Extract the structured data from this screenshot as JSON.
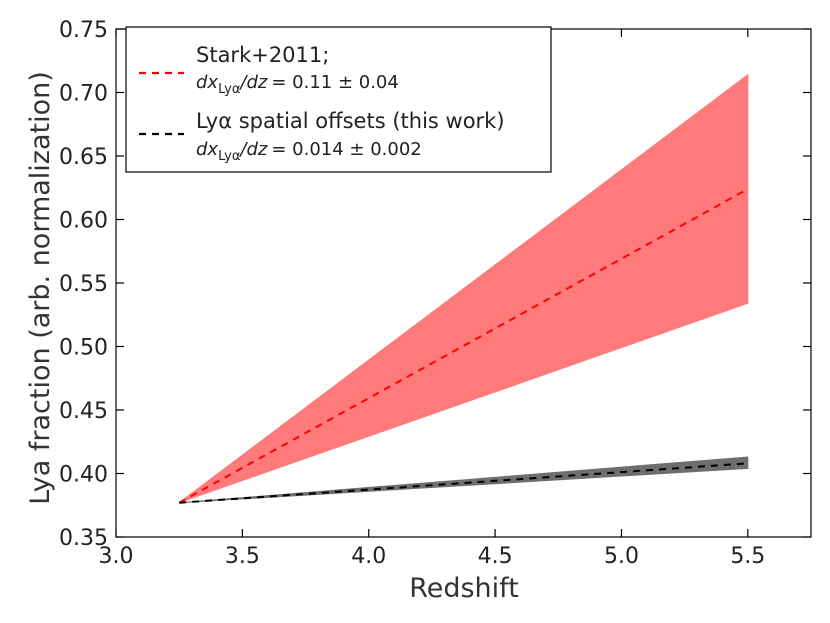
{
  "chart_data": {
    "type": "line",
    "xlabel": "Redshift",
    "ylabel": "Lya fraction (arb. normalization)",
    "xlim": [
      3.0,
      5.75
    ],
    "ylim": [
      0.35,
      0.75
    ],
    "xticks": [
      "3.0",
      "3.5",
      "4.0",
      "4.5",
      "5.0",
      "5.5"
    ],
    "yticks": [
      "0.35",
      "0.40",
      "0.45",
      "0.50",
      "0.55",
      "0.60",
      "0.65",
      "0.70",
      "0.75"
    ],
    "legend_position": "upper-left",
    "series": [
      {
        "name": "Stark+2011;",
        "slope_label": "dx_Lyα/dz = 0.11 ± 0.04",
        "slope_prefix_1": "dx",
        "slope_sub": "Lyα",
        "slope_prefix_2": "/dz",
        "slope_value": "= 0.11 ± 0.04",
        "line_color": "#ff0000",
        "band_color": "#ff7a7a",
        "x": [
          3.25,
          5.5
        ],
        "y": [
          0.377,
          0.624
        ],
        "y_lower": [
          0.377,
          0.534
        ],
        "y_upper": [
          0.377,
          0.714
        ]
      },
      {
        "name": "Lyα spatial offsets (this work)",
        "slope_label": "dx_Lyα/dz = 0.014 ± 0.002",
        "slope_prefix_1": "dx",
        "slope_sub": "Lyα",
        "slope_prefix_2": "/dz",
        "slope_value": "= 0.014 ± 0.002",
        "line_color": "#000000",
        "band_color": "#6e6e6e",
        "x": [
          3.25,
          5.5
        ],
        "y": [
          0.377,
          0.408
        ],
        "y_lower": [
          0.377,
          0.404
        ],
        "y_upper": [
          0.377,
          0.413
        ]
      }
    ]
  }
}
